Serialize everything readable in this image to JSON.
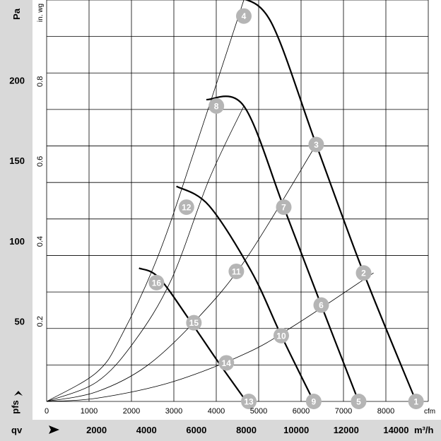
{
  "colors": {
    "panel": "#d9d9d9",
    "grid": "#000000",
    "curve": "#000000",
    "marker": "#b5b5b5",
    "marker_text": "#ffffff"
  },
  "labels": {
    "y_unit_left": "Pa",
    "y_unit_inner": "in. wg",
    "x_unit_inner": "cfm",
    "x_unit_outer": "m³/h",
    "pfs_symbol": "pfs",
    "qv_symbol": "qv"
  },
  "chart_data": {
    "type": "line",
    "title": "",
    "xlabel": "qv",
    "ylabel": "pfs",
    "x_unit": "m³/h",
    "y_unit": "Pa",
    "xlim": [
      0,
      16800
    ],
    "ylim": [
      0,
      250
    ],
    "grid": true,
    "x_ticks": [
      2000,
      4000,
      6000,
      8000,
      10000,
      12000,
      14000
    ],
    "y_ticks": [
      50,
      100,
      150,
      200
    ],
    "x2_unit": "cfm",
    "x2_ticks": [
      0,
      1000,
      2000,
      3000,
      4000,
      5000,
      6000,
      7000,
      8000
    ],
    "y2_unit": "in. wg",
    "y2_ticks": [
      0.2,
      0.4,
      0.6,
      0.8
    ],
    "series": [
      {
        "x": [
          14800,
          12700,
          10800,
          9000,
          7700
        ],
        "y": [
          0,
          80,
          160,
          236,
          252
        ]
      },
      {
        "x": [
          12500,
          11000,
          9500,
          7900,
          6400
        ],
        "y": [
          0,
          60,
          121,
          184,
          188
        ]
      },
      {
        "x": [
          10700,
          9400,
          8200,
          6500,
          5200
        ],
        "y": [
          0,
          41,
          81,
          122,
          134
        ]
      },
      {
        "x": [
          8000,
          6900,
          5800,
          4500,
          3700
        ],
        "y": [
          0,
          24,
          49,
          77,
          83
        ]
      }
    ],
    "system_curves": [
      {
        "x": [
          0,
          2000,
          5000,
          8000,
          10000,
          13100
        ],
        "y": [
          0,
          2,
          12,
          30,
          48,
          80
        ]
      },
      {
        "x": [
          0,
          2000,
          4000,
          6000,
          8000,
          10800
        ],
        "y": [
          0,
          6,
          22,
          51,
          89,
          160
        ]
      },
      {
        "x": [
          0,
          2000,
          3500,
          5000,
          6500,
          7900
        ],
        "y": [
          0,
          12,
          37,
          76,
          138,
          184
        ]
      },
      {
        "x": [
          0,
          2000,
          3000,
          4500,
          6000,
          7900
        ],
        "y": [
          0,
          18,
          41,
          92,
          160,
          250
        ]
      }
    ],
    "operating_points": [
      {
        "label": "1",
        "x": 14800,
        "y": 0
      },
      {
        "label": "2",
        "x": 12700,
        "y": 80
      },
      {
        "label": "3",
        "x": 10800,
        "y": 160
      },
      {
        "label": "4",
        "x": 7900,
        "y": 240
      },
      {
        "label": "5",
        "x": 12500,
        "y": 0
      },
      {
        "label": "6",
        "x": 11000,
        "y": 60
      },
      {
        "label": "7",
        "x": 9500,
        "y": 121
      },
      {
        "label": "8",
        "x": 6800,
        "y": 184
      },
      {
        "label": "9",
        "x": 10700,
        "y": 0
      },
      {
        "label": "10",
        "x": 9400,
        "y": 41
      },
      {
        "label": "11",
        "x": 7600,
        "y": 81
      },
      {
        "label": "12",
        "x": 5600,
        "y": 121
      },
      {
        "label": "13",
        "x": 8100,
        "y": 0
      },
      {
        "label": "14",
        "x": 7200,
        "y": 24
      },
      {
        "label": "15",
        "x": 5900,
        "y": 49
      },
      {
        "label": "16",
        "x": 4400,
        "y": 74
      }
    ]
  }
}
